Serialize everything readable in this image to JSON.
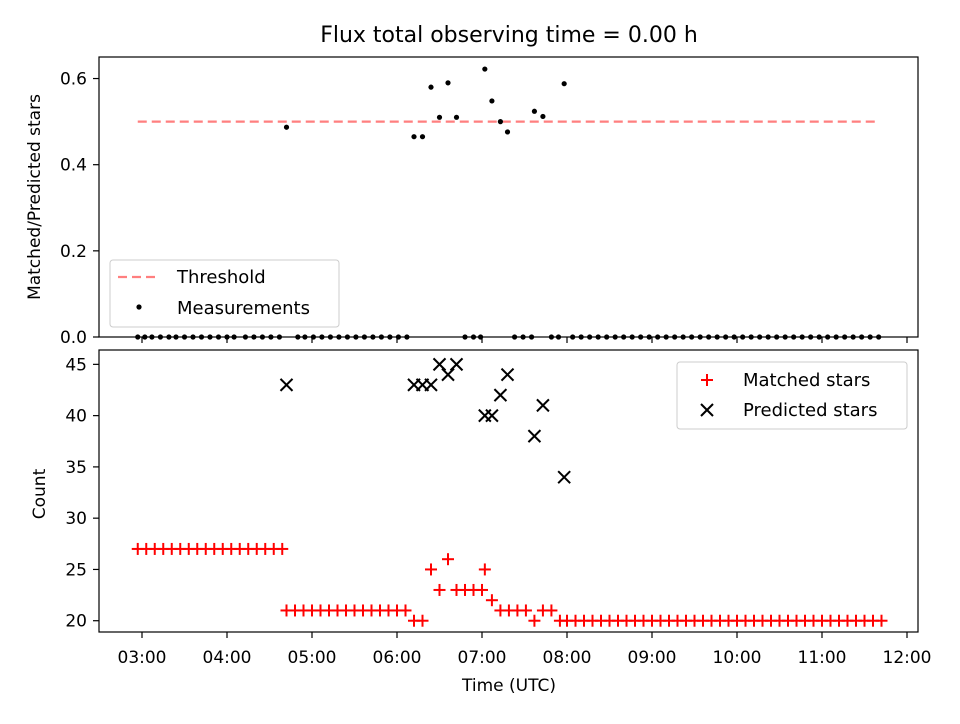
{
  "chart_data": {
    "title": "Flux total observing time = 0.00 h",
    "xlabel": "Time (UTC)",
    "xticks": [
      "03:00",
      "04:00",
      "05:00",
      "06:00",
      "07:00",
      "08:00",
      "09:00",
      "10:00",
      "11:00",
      "12:00"
    ],
    "colors": {
      "threshold": "#ff7f7f",
      "measurements": "#000000",
      "matched": "#ff0000",
      "predicted": "#000000"
    },
    "panels": [
      {
        "type": "scatter",
        "ylabel": "Matched/Predicted stars",
        "ylim": [
          0,
          0.65
        ],
        "yticks": [
          "0.0",
          "0.2",
          "0.4",
          "0.6"
        ],
        "legend_position": "lower-left",
        "threshold": {
          "name": "Threshold",
          "value": 0.5,
          "x_start": "02:57",
          "x_end": "11:40"
        },
        "measurements_name": "Measurements",
        "measurements": [
          [
            "02:57",
            0
          ],
          [
            "03:02",
            0
          ],
          [
            "03:07",
            0
          ],
          [
            "03:13",
            0
          ],
          [
            "03:19",
            0
          ],
          [
            "03:24",
            0
          ],
          [
            "03:30",
            0
          ],
          [
            "03:36",
            0
          ],
          [
            "03:42",
            0
          ],
          [
            "03:48",
            0
          ],
          [
            "03:54",
            0
          ],
          [
            "04:00",
            0
          ],
          [
            "04:05",
            0
          ],
          [
            "04:13",
            0
          ],
          [
            "04:19",
            0
          ],
          [
            "04:25",
            0
          ],
          [
            "04:31",
            0
          ],
          [
            "04:37",
            0
          ],
          [
            "04:42",
            0.487
          ],
          [
            "04:50",
            0
          ],
          [
            "04:55",
            0
          ],
          [
            "05:01",
            0
          ],
          [
            "05:07",
            0
          ],
          [
            "05:13",
            0
          ],
          [
            "05:19",
            0
          ],
          [
            "05:25",
            0
          ],
          [
            "05:31",
            0
          ],
          [
            "05:37",
            0
          ],
          [
            "05:43",
            0
          ],
          [
            "05:49",
            0
          ],
          [
            "05:55",
            0
          ],
          [
            "06:01",
            0
          ],
          [
            "06:07",
            0
          ],
          [
            "06:12",
            0.465
          ],
          [
            "06:18",
            0.465
          ],
          [
            "06:24",
            0.58
          ],
          [
            "06:30",
            0.51
          ],
          [
            "06:36",
            0.59
          ],
          [
            "06:42",
            0.51
          ],
          [
            "06:48",
            0
          ],
          [
            "06:54",
            0
          ],
          [
            "06:59",
            0
          ],
          [
            "07:02",
            0.622
          ],
          [
            "07:07",
            0.548
          ],
          [
            "07:13",
            0.5
          ],
          [
            "07:18",
            0.476
          ],
          [
            "07:23",
            0
          ],
          [
            "07:29",
            0
          ],
          [
            "07:35",
            0
          ],
          [
            "07:37",
            0.524
          ],
          [
            "07:43",
            0.512
          ],
          [
            "07:49",
            0
          ],
          [
            "07:54",
            0
          ],
          [
            "07:58",
            0.588
          ],
          [
            "08:04",
            0
          ],
          [
            "08:10",
            0
          ],
          [
            "08:16",
            0
          ],
          [
            "08:22",
            0
          ],
          [
            "08:28",
            0
          ],
          [
            "08:34",
            0
          ],
          [
            "08:40",
            0
          ],
          [
            "08:46",
            0
          ],
          [
            "08:52",
            0
          ],
          [
            "08:58",
            0
          ],
          [
            "09:04",
            0
          ],
          [
            "09:10",
            0
          ],
          [
            "09:16",
            0
          ],
          [
            "09:22",
            0
          ],
          [
            "09:28",
            0
          ],
          [
            "09:34",
            0
          ],
          [
            "09:40",
            0
          ],
          [
            "09:46",
            0
          ],
          [
            "09:52",
            0
          ],
          [
            "09:58",
            0
          ],
          [
            "10:04",
            0
          ],
          [
            "10:10",
            0
          ],
          [
            "10:16",
            0
          ],
          [
            "10:22",
            0
          ],
          [
            "10:28",
            0
          ],
          [
            "10:34",
            0
          ],
          [
            "10:40",
            0
          ],
          [
            "10:46",
            0
          ],
          [
            "10:52",
            0
          ],
          [
            "10:58",
            0
          ],
          [
            "11:04",
            0
          ],
          [
            "11:10",
            0
          ],
          [
            "11:16",
            0
          ],
          [
            "11:22",
            0
          ],
          [
            "11:28",
            0
          ],
          [
            "11:34",
            0
          ],
          [
            "11:40",
            0
          ]
        ]
      },
      {
        "type": "scatter",
        "ylabel": "Count",
        "ylim": [
          18.9,
          46.4
        ],
        "yticks": [
          "20",
          "25",
          "30",
          "35",
          "40",
          "45"
        ],
        "legend_position": "upper-right",
        "series": [
          {
            "name": "Matched stars",
            "marker": "plus",
            "points": [
              [
                "02:57",
                27
              ],
              [
                "03:03",
                27
              ],
              [
                "03:09",
                27
              ],
              [
                "03:15",
                27
              ],
              [
                "03:21",
                27
              ],
              [
                "03:27",
                27
              ],
              [
                "03:33",
                27
              ],
              [
                "03:39",
                27
              ],
              [
                "03:45",
                27
              ],
              [
                "03:51",
                27
              ],
              [
                "03:57",
                27
              ],
              [
                "04:03",
                27
              ],
              [
                "04:09",
                27
              ],
              [
                "04:15",
                27
              ],
              [
                "04:21",
                27
              ],
              [
                "04:27",
                27
              ],
              [
                "04:33",
                27
              ],
              [
                "04:39",
                27
              ],
              [
                "04:42",
                21
              ],
              [
                "04:48",
                21
              ],
              [
                "04:54",
                21
              ],
              [
                "05:00",
                21
              ],
              [
                "05:06",
                21
              ],
              [
                "05:12",
                21
              ],
              [
                "05:18",
                21
              ],
              [
                "05:24",
                21
              ],
              [
                "05:30",
                21
              ],
              [
                "05:36",
                21
              ],
              [
                "05:42",
                21
              ],
              [
                "05:48",
                21
              ],
              [
                "05:54",
                21
              ],
              [
                "06:00",
                21
              ],
              [
                "06:06",
                21
              ],
              [
                "06:12",
                20
              ],
              [
                "06:18",
                20
              ],
              [
                "06:24",
                25
              ],
              [
                "06:30",
                23
              ],
              [
                "06:36",
                26
              ],
              [
                "06:42",
                23
              ],
              [
                "06:48",
                23
              ],
              [
                "06:54",
                23
              ],
              [
                "07:00",
                23
              ],
              [
                "07:02",
                25
              ],
              [
                "07:07",
                22
              ],
              [
                "07:13",
                21
              ],
              [
                "07:19",
                21
              ],
              [
                "07:25",
                21
              ],
              [
                "07:31",
                21
              ],
              [
                "07:37",
                20
              ],
              [
                "07:43",
                21
              ],
              [
                "07:49",
                21
              ],
              [
                "07:55",
                20
              ],
              [
                "08:00",
                20
              ],
              [
                "08:06",
                20
              ],
              [
                "08:12",
                20
              ],
              [
                "08:18",
                20
              ],
              [
                "08:24",
                20
              ],
              [
                "08:30",
                20
              ],
              [
                "08:36",
                20
              ],
              [
                "08:42",
                20
              ],
              [
                "08:48",
                20
              ],
              [
                "08:54",
                20
              ],
              [
                "09:00",
                20
              ],
              [
                "09:06",
                20
              ],
              [
                "09:12",
                20
              ],
              [
                "09:18",
                20
              ],
              [
                "09:24",
                20
              ],
              [
                "09:30",
                20
              ],
              [
                "09:36",
                20
              ],
              [
                "09:42",
                20
              ],
              [
                "09:48",
                20
              ],
              [
                "09:54",
                20
              ],
              [
                "10:00",
                20
              ],
              [
                "10:06",
                20
              ],
              [
                "10:12",
                20
              ],
              [
                "10:18",
                20
              ],
              [
                "10:24",
                20
              ],
              [
                "10:30",
                20
              ],
              [
                "10:36",
                20
              ],
              [
                "10:42",
                20
              ],
              [
                "10:48",
                20
              ],
              [
                "10:54",
                20
              ],
              [
                "11:00",
                20
              ],
              [
                "11:06",
                20
              ],
              [
                "11:12",
                20
              ],
              [
                "11:18",
                20
              ],
              [
                "11:24",
                20
              ],
              [
                "11:30",
                20
              ],
              [
                "11:36",
                20
              ],
              [
                "11:42",
                20
              ]
            ]
          },
          {
            "name": "Predicted stars",
            "marker": "x",
            "points": [
              [
                "04:42",
                43
              ],
              [
                "06:12",
                43
              ],
              [
                "06:18",
                43
              ],
              [
                "06:24",
                43
              ],
              [
                "06:30",
                45
              ],
              [
                "06:36",
                44
              ],
              [
                "06:42",
                45
              ],
              [
                "07:02",
                40
              ],
              [
                "07:07",
                40
              ],
              [
                "07:13",
                42
              ],
              [
                "07:18",
                44
              ],
              [
                "07:37",
                38
              ],
              [
                "07:43",
                41
              ],
              [
                "07:58",
                34
              ]
            ]
          }
        ]
      }
    ]
  }
}
